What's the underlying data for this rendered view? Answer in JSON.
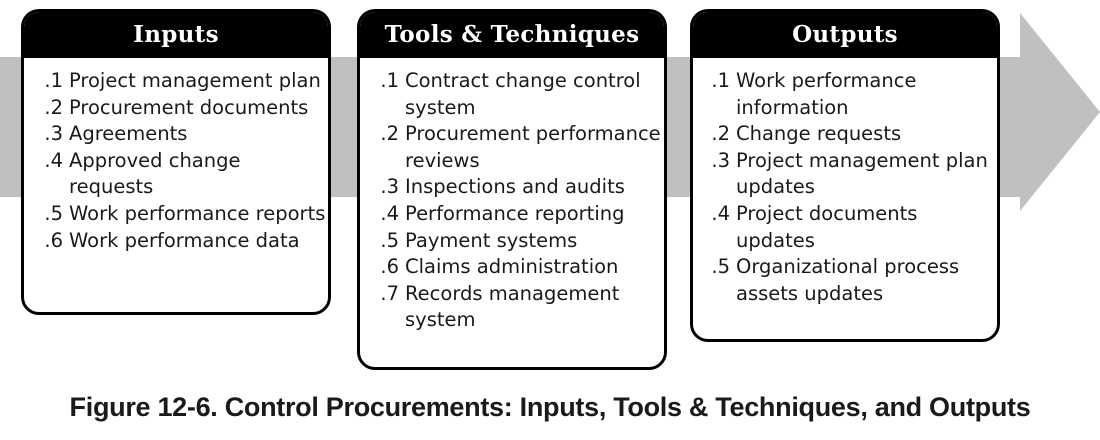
{
  "panels": {
    "inputs": {
      "title": "Inputs",
      "items": [
        {
          "num": ".1",
          "text": "Project management plan"
        },
        {
          "num": ".2",
          "text": "Procurement documents"
        },
        {
          "num": ".3",
          "text": "Agreements"
        },
        {
          "num": ".4",
          "text": "Approved change requests"
        },
        {
          "num": ".5",
          "text": "Work performance reports"
        },
        {
          "num": ".6",
          "text": "Work performance data"
        }
      ]
    },
    "tools": {
      "title": "Tools & Techniques",
      "items": [
        {
          "num": ".1",
          "text": "Contract change control system"
        },
        {
          "num": ".2",
          "text": "Procurement performance reviews"
        },
        {
          "num": ".3",
          "text": "Inspections and audits"
        },
        {
          "num": ".4",
          "text": "Performance reporting"
        },
        {
          "num": ".5",
          "text": "Payment systems"
        },
        {
          "num": ".6",
          "text": "Claims administration"
        },
        {
          "num": ".7",
          "text": "Records management system"
        }
      ]
    },
    "outputs": {
      "title": "Outputs",
      "items": [
        {
          "num": ".1",
          "text": "Work performance information"
        },
        {
          "num": ".2",
          "text": "Change requests"
        },
        {
          "num": ".3",
          "text": "Project management plan updates"
        },
        {
          "num": ".4",
          "text": "Project documents updates"
        },
        {
          "num": ".5",
          "text": "Organizational process assets updates"
        }
      ]
    }
  },
  "caption": "Figure 12-6. Control Procurements: Inputs, Tools & Techniques, and Outputs",
  "colors": {
    "arrow": "#c0c0c0",
    "header_bg": "#000000",
    "header_text": "#ffffff",
    "box_border": "#000000",
    "text": "#1a1a1a"
  }
}
